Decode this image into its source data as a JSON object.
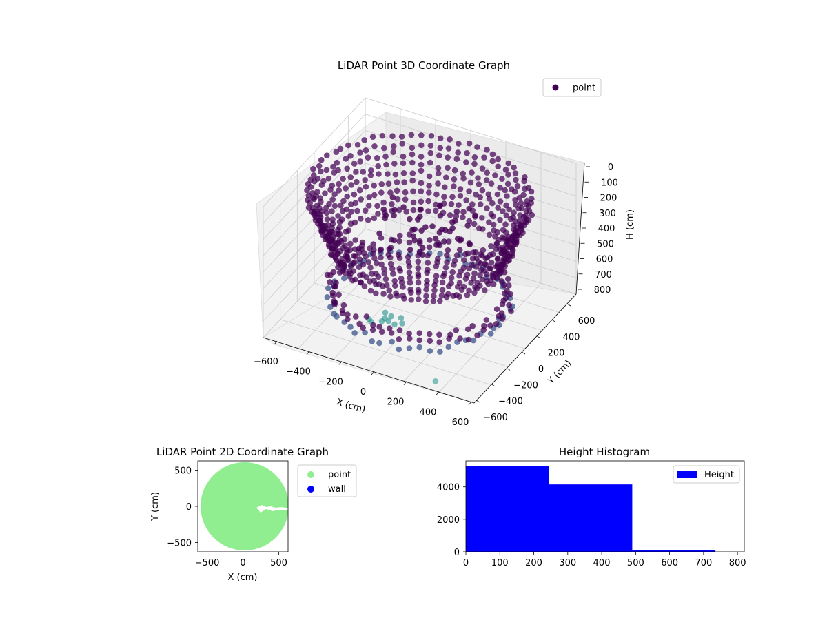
{
  "colors": {
    "point3d_dark": "#440154",
    "point3d_mid": "#3b528b",
    "point3d_teal": "#21918c",
    "point2d": "#90ee90",
    "wall": "#0000ff",
    "hist": "#0000ff",
    "pane": "#f2f2f2",
    "grid": "#cccccc"
  },
  "chart_data": [
    {
      "type": "scatter3d",
      "title": "LiDAR Point 3D Coordinate Graph",
      "xlabel": "X (cm)",
      "ylabel": "Y (cm)",
      "zlabel": "H (cm)",
      "xticks": [
        "−600",
        "−400",
        "−200",
        "0",
        "200",
        "400",
        "600"
      ],
      "yticks": [
        "−600",
        "−400",
        "−200",
        "0",
        "200",
        "400",
        "600"
      ],
      "zticks": [
        "0",
        "100",
        "200",
        "300",
        "400",
        "500",
        "600",
        "700",
        "800"
      ],
      "xlim": [
        -600,
        600
      ],
      "ylim": [
        -600,
        600
      ],
      "zlim": [
        0,
        800
      ],
      "zaxis_inverted": true,
      "colormap": "viridis",
      "legend": {
        "entries": [
          "point"
        ],
        "position": "top-right"
      },
      "grid": true
    },
    {
      "type": "scatter",
      "title": "LiDAR Point 2D Coordinate Graph",
      "xlabel": "X (cm)",
      "ylabel": "Y (cm)",
      "xticks": [
        "−500",
        "0",
        "500"
      ],
      "yticks": [
        "500",
        "0",
        "−500"
      ],
      "xlim": [
        -630,
        630
      ],
      "ylim": [
        -630,
        630
      ],
      "series": [
        {
          "name": "point",
          "color": "#90ee90",
          "shape": "filled disc of radius ~600 cm with a small notch near x≈200..630, y≈0"
        },
        {
          "name": "wall",
          "color": "#0000ff"
        }
      ],
      "legend": {
        "entries": [
          "point",
          "wall"
        ],
        "position": "outside right"
      },
      "grid": false
    },
    {
      "type": "bar",
      "title": "Height Histogram",
      "xticks": [
        "0",
        "100",
        "200",
        "300",
        "400",
        "500",
        "600",
        "700",
        "800"
      ],
      "yticks": [
        "0",
        "2000",
        "4000"
      ],
      "xlim": [
        0,
        820
      ],
      "ylim": [
        0,
        5600
      ],
      "bins": [
        {
          "x0": 0,
          "x1": 245,
          "value": 5300
        },
        {
          "x0": 245,
          "x1": 490,
          "value": 4150
        },
        {
          "x0": 490,
          "x1": 735,
          "value": 120
        }
      ],
      "series": [
        {
          "name": "Height"
        }
      ],
      "legend": {
        "entries": [
          "Height"
        ],
        "position": "top-right"
      },
      "grid": false
    }
  ]
}
